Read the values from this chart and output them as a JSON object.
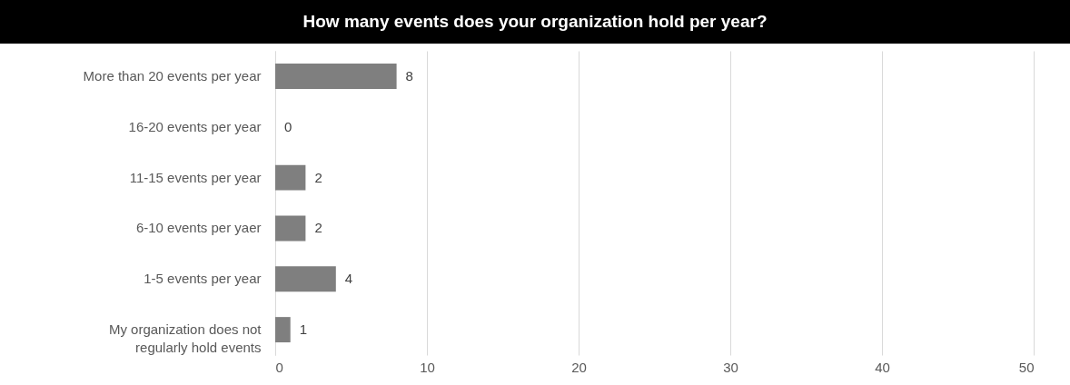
{
  "chart_data": {
    "type": "bar",
    "orientation": "horizontal",
    "title": "How many events does your organization hold per year?",
    "categories": [
      "More than 20 events per year",
      "16-20 events per year",
      "11-15 events per year",
      "6-10 events per yaer",
      "1-5 events per year",
      "My organization does not regularly hold events"
    ],
    "values": [
      8,
      0,
      2,
      2,
      4,
      1
    ],
    "color": "#7f7f7f",
    "data_labels": true,
    "xlim": [
      0,
      50
    ],
    "xticks": [
      0,
      10,
      20,
      30,
      40,
      50
    ],
    "grid": "x"
  }
}
